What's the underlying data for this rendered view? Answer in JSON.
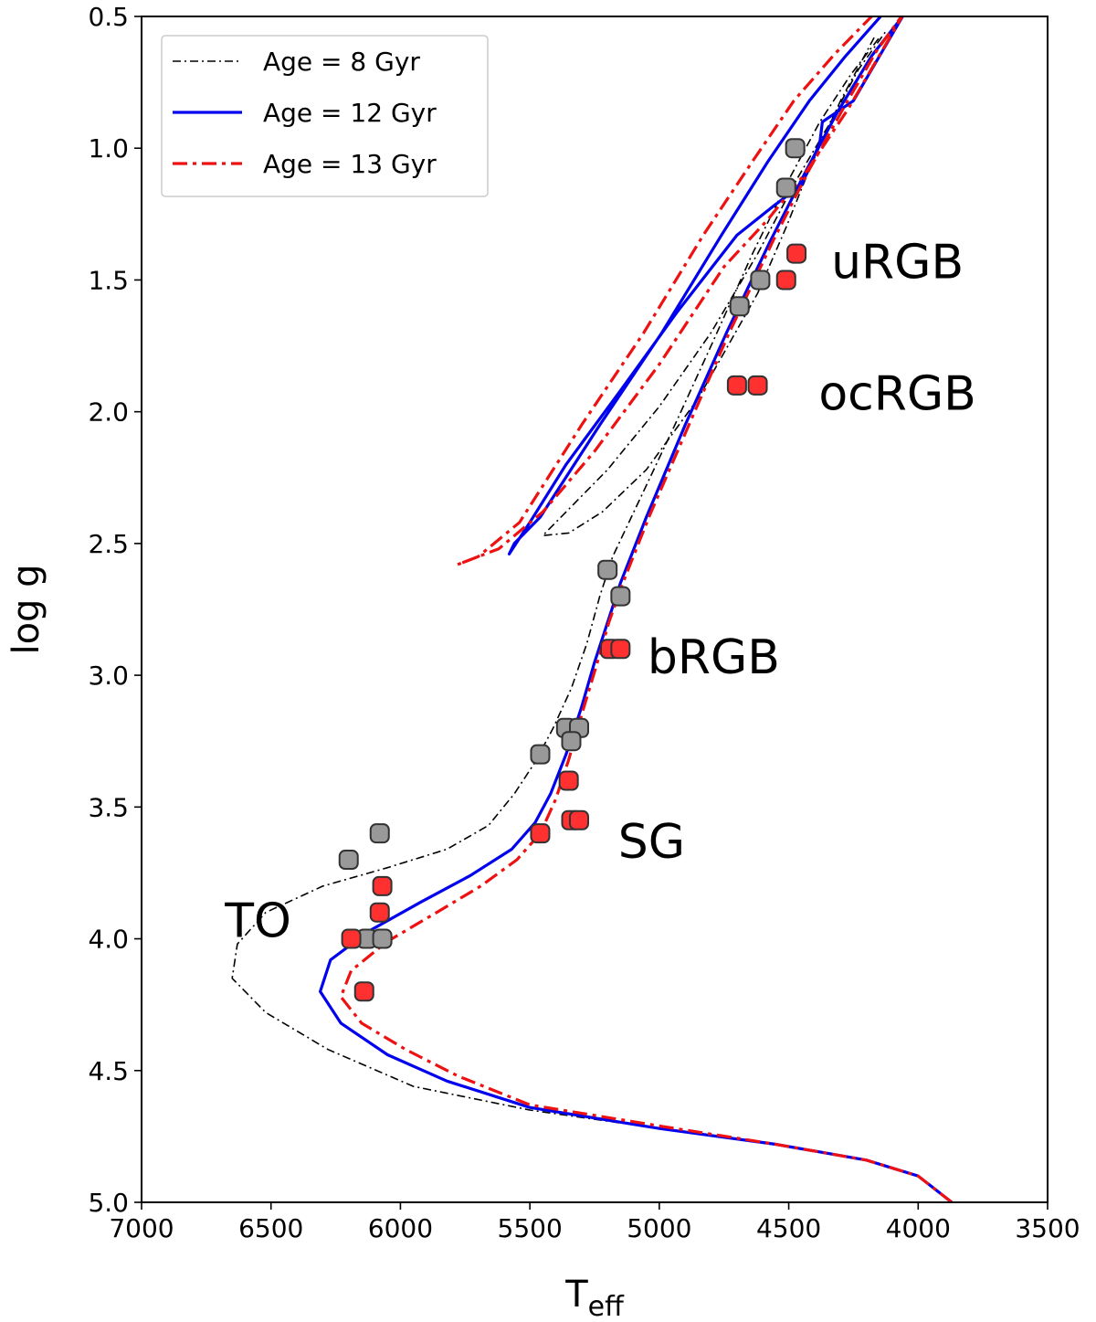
{
  "chart_data": {
    "type": "line",
    "xlabel": "T",
    "xlabel_sub": "eff",
    "ylabel": "log g",
    "xlim": [
      7000,
      3500
    ],
    "ylim": [
      0.5,
      5.0
    ],
    "x_ticks": [
      7000,
      6500,
      6000,
      5500,
      5000,
      4500,
      4000,
      3500
    ],
    "x_tick_labels": [
      "7000",
      "6500",
      "6000",
      "5500",
      "5000",
      "4500",
      "4000",
      "3500"
    ],
    "y_ticks": [
      0.5,
      1.0,
      1.5,
      2.0,
      2.5,
      3.0,
      3.5,
      4.0,
      4.5,
      5.0
    ],
    "y_tick_labels": [
      "0.5",
      "1.0",
      "1.5",
      "2.0",
      "2.5",
      "3.0",
      "3.5",
      "4.0",
      "4.5",
      "5.0"
    ],
    "legend_position": "upper-left",
    "series": [
      {
        "name": "Age = 8 Gyr",
        "legend_label": "Age = 8 Gyr",
        "color": "#000000",
        "style": "dashdot-thin",
        "points": [
          [
            3870,
            5.0
          ],
          [
            4000,
            4.9
          ],
          [
            4200,
            4.84
          ],
          [
            4550,
            4.78
          ],
          [
            5000,
            4.72
          ],
          [
            5500,
            4.65
          ],
          [
            5950,
            4.56
          ],
          [
            6280,
            4.42
          ],
          [
            6520,
            4.28
          ],
          [
            6650,
            4.15
          ],
          [
            6630,
            4.02
          ],
          [
            6520,
            3.9
          ],
          [
            6300,
            3.8
          ],
          [
            6050,
            3.73
          ],
          [
            5820,
            3.66
          ],
          [
            5660,
            3.57
          ],
          [
            5560,
            3.45
          ],
          [
            5480,
            3.33
          ],
          [
            5410,
            3.2
          ],
          [
            5340,
            3.05
          ],
          [
            5280,
            2.88
          ],
          [
            5230,
            2.7
          ],
          [
            5180,
            2.55
          ],
          [
            5060,
            2.3
          ],
          [
            4940,
            2.05
          ],
          [
            4800,
            1.75
          ],
          [
            4640,
            1.4
          ],
          [
            4500,
            1.12
          ],
          [
            4380,
            0.9
          ],
          [
            4260,
            0.72
          ],
          [
            4150,
            0.58
          ]
        ],
        "clump_branch": [
          [
            4170,
            0.58
          ],
          [
            4300,
            0.82
          ],
          [
            4420,
            1.08
          ],
          [
            4510,
            1.3
          ],
          [
            4620,
            1.55
          ],
          [
            4850,
            1.95
          ],
          [
            5050,
            2.22
          ],
          [
            5220,
            2.38
          ],
          [
            5350,
            2.46
          ],
          [
            5450,
            2.47
          ],
          [
            5400,
            2.42
          ],
          [
            5200,
            2.22
          ],
          [
            5000,
            1.98
          ],
          [
            4800,
            1.7
          ],
          [
            4620,
            1.4
          ],
          [
            4470,
            1.12
          ],
          [
            4350,
            0.92
          ],
          [
            4230,
            0.7
          ],
          [
            4120,
            0.55
          ]
        ]
      },
      {
        "name": "Age = 12 Gyr",
        "legend_label": "Age = 12 Gyr",
        "color": "#0000ee",
        "style": "solid",
        "points": [
          [
            3870,
            5.0
          ],
          [
            4000,
            4.9
          ],
          [
            4200,
            4.84
          ],
          [
            4550,
            4.78
          ],
          [
            5000,
            4.72
          ],
          [
            5500,
            4.64
          ],
          [
            5820,
            4.54
          ],
          [
            6050,
            4.44
          ],
          [
            6230,
            4.32
          ],
          [
            6310,
            4.2
          ],
          [
            6270,
            4.08
          ],
          [
            6120,
            3.97
          ],
          [
            5920,
            3.86
          ],
          [
            5730,
            3.76
          ],
          [
            5570,
            3.66
          ],
          [
            5480,
            3.56
          ],
          [
            5420,
            3.45
          ],
          [
            5360,
            3.3
          ],
          [
            5300,
            3.12
          ],
          [
            5250,
            2.95
          ],
          [
            5200,
            2.8
          ],
          [
            5150,
            2.65
          ],
          [
            5050,
            2.4
          ],
          [
            4900,
            2.05
          ],
          [
            4740,
            1.7
          ],
          [
            4570,
            1.35
          ],
          [
            4430,
            1.08
          ],
          [
            4310,
            0.86
          ],
          [
            4180,
            0.65
          ],
          [
            4060,
            0.5
          ]
        ],
        "clump_branch": [
          [
            4060,
            0.5
          ],
          [
            4250,
            0.82
          ],
          [
            4370,
            0.9
          ],
          [
            4380,
            0.98
          ],
          [
            4450,
            1.14
          ],
          [
            4560,
            1.22
          ],
          [
            4700,
            1.33
          ],
          [
            4930,
            1.62
          ],
          [
            5150,
            1.92
          ],
          [
            5360,
            2.2
          ],
          [
            5500,
            2.42
          ],
          [
            5580,
            2.54
          ],
          [
            5560,
            2.5
          ],
          [
            5460,
            2.4
          ],
          [
            5230,
            2.05
          ],
          [
            4990,
            1.7
          ],
          [
            4760,
            1.33
          ],
          [
            4580,
            1.05
          ],
          [
            4420,
            0.82
          ],
          [
            4280,
            0.65
          ],
          [
            4100,
            0.45
          ]
        ]
      },
      {
        "name": "Age = 13 Gyr",
        "legend_label": "Age = 13 Gyr",
        "color": "#ee1111",
        "style": "dashdot",
        "points": [
          [
            3870,
            5.0
          ],
          [
            4000,
            4.9
          ],
          [
            4200,
            4.84
          ],
          [
            4550,
            4.78
          ],
          [
            5000,
            4.71
          ],
          [
            5500,
            4.63
          ],
          [
            5780,
            4.52
          ],
          [
            5980,
            4.42
          ],
          [
            6150,
            4.32
          ],
          [
            6230,
            4.22
          ],
          [
            6190,
            4.12
          ],
          [
            6050,
            4.01
          ],
          [
            5860,
            3.9
          ],
          [
            5690,
            3.8
          ],
          [
            5550,
            3.7
          ],
          [
            5460,
            3.6
          ],
          [
            5400,
            3.47
          ],
          [
            5350,
            3.32
          ],
          [
            5300,
            3.15
          ],
          [
            5245,
            2.97
          ],
          [
            5195,
            2.8
          ],
          [
            5145,
            2.66
          ],
          [
            5040,
            2.4
          ],
          [
            4890,
            2.06
          ],
          [
            4730,
            1.7
          ],
          [
            4560,
            1.35
          ],
          [
            4420,
            1.08
          ],
          [
            4290,
            0.85
          ],
          [
            4160,
            0.63
          ],
          [
            4050,
            0.48
          ]
        ],
        "clump_branch": [
          [
            4050,
            0.48
          ],
          [
            4270,
            0.85
          ],
          [
            4440,
            1.1
          ],
          [
            4580,
            1.27
          ],
          [
            4750,
            1.45
          ],
          [
            5000,
            1.82
          ],
          [
            5250,
            2.15
          ],
          [
            5450,
            2.38
          ],
          [
            5620,
            2.52
          ],
          [
            5780,
            2.58
          ],
          [
            5700,
            2.55
          ],
          [
            5540,
            2.42
          ],
          [
            5300,
            2.05
          ],
          [
            5060,
            1.7
          ],
          [
            4830,
            1.33
          ],
          [
            4640,
            1.05
          ],
          [
            4480,
            0.82
          ],
          [
            4320,
            0.64
          ],
          [
            4180,
            0.5
          ]
        ]
      }
    ],
    "scatter_series": [
      {
        "name": "gray stars",
        "color": "#999999",
        "points": [
          [
            4475,
            1.0
          ],
          [
            4510,
            1.15
          ],
          [
            4610,
            1.5
          ],
          [
            4690,
            1.6
          ],
          [
            5200,
            2.6
          ],
          [
            5150,
            2.7
          ],
          [
            5360,
            3.2
          ],
          [
            5310,
            3.2
          ],
          [
            5340,
            3.25
          ],
          [
            5460,
            3.3
          ],
          [
            6080,
            3.6
          ],
          [
            6200,
            3.7
          ],
          [
            6130,
            4.0
          ],
          [
            6070,
            4.0
          ]
        ]
      },
      {
        "name": "red stars",
        "color": "#ff3030",
        "points": [
          [
            4470,
            1.4
          ],
          [
            4510,
            1.5
          ],
          [
            4700,
            1.9
          ],
          [
            4620,
            1.9
          ],
          [
            5190,
            2.9
          ],
          [
            5150,
            2.9
          ],
          [
            5350,
            3.4
          ],
          [
            5340,
            3.55
          ],
          [
            5310,
            3.55
          ],
          [
            5460,
            3.6
          ],
          [
            6070,
            3.8
          ],
          [
            6080,
            3.9
          ],
          [
            6190,
            4.0
          ],
          [
            6140,
            4.2
          ]
        ]
      }
    ],
    "annotations": [
      {
        "text": "uRGB",
        "x": 4080,
        "y": 1.43
      },
      {
        "text": "ocRGB",
        "x": 4080,
        "y": 1.93
      },
      {
        "text": "bRGB",
        "x": 4790,
        "y": 2.93
      },
      {
        "text": "SG",
        "x": 5030,
        "y": 3.63
      },
      {
        "text": "TO",
        "x": 6550,
        "y": 3.93
      }
    ]
  }
}
